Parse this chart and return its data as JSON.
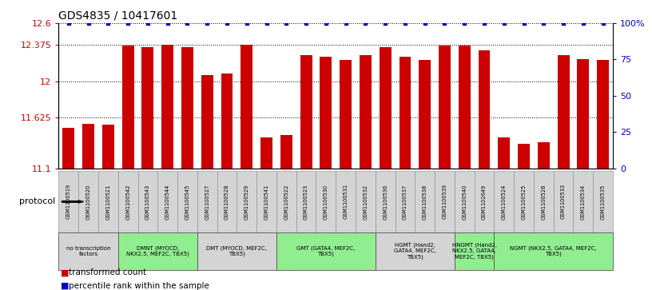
{
  "title": "GDS4835 / 10417601",
  "samples": [
    "GSM1100519",
    "GSM1100520",
    "GSM1100521",
    "GSM1100542",
    "GSM1100543",
    "GSM1100544",
    "GSM1100545",
    "GSM1100527",
    "GSM1100528",
    "GSM1100529",
    "GSM1100541",
    "GSM1100522",
    "GSM1100523",
    "GSM1100530",
    "GSM1100531",
    "GSM1100532",
    "GSM1100536",
    "GSM1100537",
    "GSM1100538",
    "GSM1100539",
    "GSM1100540",
    "GSM1102649",
    "GSM1100524",
    "GSM1100525",
    "GSM1100526",
    "GSM1100533",
    "GSM1100534",
    "GSM1100535"
  ],
  "bar_values": [
    11.52,
    11.56,
    11.55,
    12.37,
    12.35,
    12.38,
    12.35,
    12.06,
    12.08,
    12.38,
    11.42,
    11.44,
    12.27,
    12.25,
    12.22,
    12.27,
    12.35,
    12.25,
    12.22,
    12.37,
    12.37,
    12.32,
    11.42,
    11.35,
    11.37,
    12.27,
    12.23,
    12.22
  ],
  "percentile_values": [
    100,
    100,
    100,
    100,
    100,
    100,
    100,
    100,
    100,
    100,
    100,
    100,
    100,
    100,
    100,
    100,
    100,
    100,
    100,
    100,
    100,
    100,
    100,
    100,
    100,
    100,
    100,
    100
  ],
  "protocols": [
    {
      "label": "no transcription\nfactors",
      "start": 0,
      "end": 3,
      "color": "#d4d4d4"
    },
    {
      "label": "DMNT (MYOCD,\nNKX2.5, MEF2C, TBX5)",
      "start": 3,
      "end": 7,
      "color": "#90ee90"
    },
    {
      "label": "DMT (MYOCD, MEF2C,\nTBX5)",
      "start": 7,
      "end": 11,
      "color": "#d4d4d4"
    },
    {
      "label": "GMT (GATA4, MEF2C,\nTBX5)",
      "start": 11,
      "end": 16,
      "color": "#90ee90"
    },
    {
      "label": "HGMT (Hand2,\nGATA4, MEF2C,\nTBX5)",
      "start": 16,
      "end": 20,
      "color": "#d4d4d4"
    },
    {
      "label": "HNGMT (Hand2,\nNKX2.5, GATA4,\nMEF2C, TBX5)",
      "start": 20,
      "end": 22,
      "color": "#90ee90"
    },
    {
      "label": "NGMT (NKX2.5, GATA4, MEF2C,\nTBX5)",
      "start": 22,
      "end": 28,
      "color": "#90ee90"
    }
  ],
  "bar_color": "#cc0000",
  "percentile_color": "#0000cc",
  "ylim_left": [
    11.1,
    12.6
  ],
  "ylim_right": [
    0,
    100
  ],
  "yticks_left": [
    11.1,
    11.625,
    12.0,
    12.375,
    12.6
  ],
  "yticks_right": [
    0,
    25,
    50,
    75,
    100
  ],
  "ytick_labels_left": [
    "11.1",
    "11.625",
    "12",
    "12.375",
    "12.6"
  ],
  "ytick_labels_right": [
    "0",
    "25",
    "50",
    "75",
    "100%"
  ],
  "protocol_label": "protocol",
  "legend_bar_label": "transformed count",
  "legend_dot_label": "percentile rank within the sample"
}
